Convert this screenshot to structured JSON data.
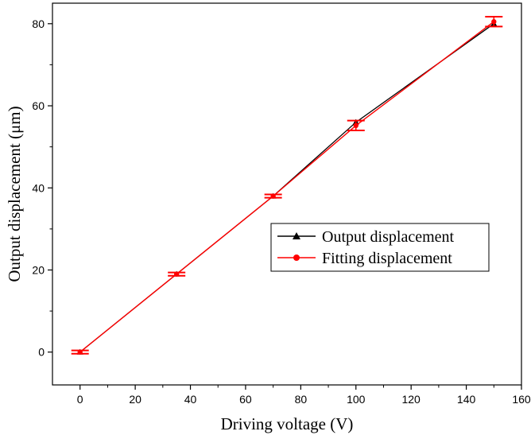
{
  "chart_data": {
    "type": "line",
    "xlabel": "Driving voltage (V)",
    "ylabel": "Output displacement (μm)",
    "xlim": [
      -10,
      160
    ],
    "ylim": [
      -8,
      85
    ],
    "xticks": [
      0,
      20,
      40,
      60,
      80,
      100,
      120,
      140,
      160
    ],
    "yticks": [
      0,
      20,
      40,
      60,
      80
    ],
    "grid": false,
    "legend_position": "center-right",
    "series": [
      {
        "name": "Output displacement",
        "color": "#000000",
        "marker": "triangle",
        "x": [
          0,
          35,
          70,
          100,
          150
        ],
        "y": [
          0,
          19,
          38,
          56,
          80
        ]
      },
      {
        "name": "Fitting displacement",
        "color": "#ff0000",
        "marker": "circle",
        "x": [
          0,
          35,
          70,
          100,
          150
        ],
        "y": [
          0,
          19,
          38,
          55.2,
          80.5
        ],
        "error": [
          0.4,
          0.4,
          0.4,
          1.2,
          1.2
        ]
      }
    ]
  }
}
